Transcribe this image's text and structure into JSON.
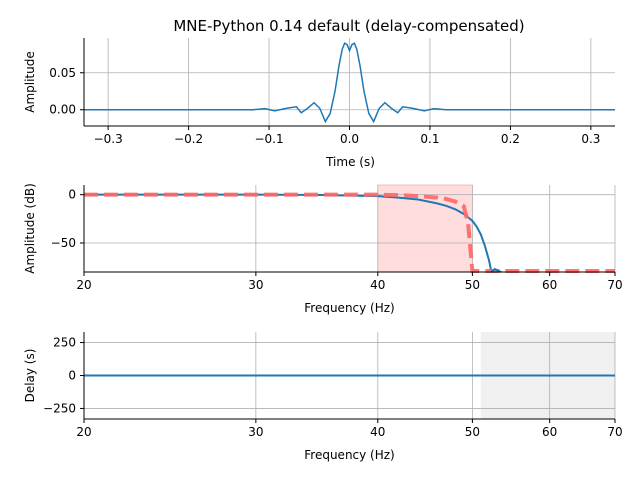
{
  "title": "MNE-Python 0.14 default (delay-compensated)",
  "colors": {
    "line": "#1f77b4",
    "ideal": "#ff6666",
    "transition_fill": "#ffdddd",
    "stopband_fill": "#f0f0f0",
    "grid": "#b0b0b0"
  },
  "chart_data": [
    {
      "type": "line",
      "panel": "impulse",
      "title": "MNE-Python 0.14 default (delay-compensated)",
      "xlabel": "Time (s)",
      "ylabel": "Amplitude",
      "xlim": [
        -0.33,
        0.33
      ],
      "ylim": [
        -0.022,
        0.097
      ],
      "xticks": [
        -0.3,
        -0.2,
        -0.1,
        0.0,
        0.1,
        0.2,
        0.3
      ],
      "xtick_labels": [
        "−0.3",
        "−0.2",
        "−0.1",
        "0.0",
        "0.1",
        "0.2",
        "0.3"
      ],
      "yticks": [
        0.0,
        0.05
      ],
      "ytick_labels": [
        "0.00",
        "0.05"
      ],
      "grid": true,
      "series": [
        {
          "x": [
            -0.33,
            -0.12,
            -0.105,
            -0.093,
            -0.078,
            -0.066,
            -0.06,
            -0.052,
            -0.044,
            -0.037,
            -0.03,
            -0.024,
            -0.018,
            -0.013,
            -0.009,
            -0.006,
            -0.003,
            0.0,
            0.003,
            0.006,
            0.009,
            0.013,
            0.018,
            0.024,
            0.03,
            0.037,
            0.044,
            0.052,
            0.06,
            0.066,
            0.078,
            0.093,
            0.105,
            0.12,
            0.33
          ],
          "y": [
            0.0,
            0.0,
            0.0015,
            -0.0015,
            0.002,
            0.004,
            -0.004,
            0.002,
            0.0095,
            0.002,
            -0.016,
            -0.005,
            0.025,
            0.06,
            0.082,
            0.09,
            0.088,
            0.08,
            0.088,
            0.09,
            0.082,
            0.06,
            0.025,
            -0.005,
            -0.016,
            0.002,
            0.0095,
            0.002,
            -0.004,
            0.004,
            0.002,
            -0.0015,
            0.0015,
            0.0,
            0.0
          ]
        }
      ]
    },
    {
      "type": "line",
      "panel": "magnitude",
      "xlabel": "Frequency (Hz)",
      "ylabel": "Amplitude (dB)",
      "xscale": "log",
      "xlim": [
        20,
        70
      ],
      "ylim": [
        -80,
        10
      ],
      "xticks": [
        20,
        30,
        40,
        50,
        60,
        70
      ],
      "xtick_labels": [
        "20",
        "30",
        "40",
        "50",
        "60",
        "70"
      ],
      "yticks": [
        0,
        -50
      ],
      "ytick_labels": [
        "0",
        "−50"
      ],
      "grid": true,
      "shaded_band_hz": [
        40,
        50
      ],
      "series": [
        {
          "name": "",
          "style": "solid",
          "x": [
            20,
            30,
            35,
            40,
            42,
            44,
            46,
            47,
            48,
            49,
            50,
            50.5,
            51,
            51.5,
            52,
            52.3
          ],
          "y": [
            0,
            0,
            -0.3,
            -1.5,
            -3,
            -5,
            -9,
            -11.5,
            -15,
            -20,
            -27,
            -33,
            -41,
            -53,
            -68,
            -80
          ]
        },
        {
          "name": "",
          "style": "dashed",
          "x": [
            20,
            40,
            42,
            44,
            46,
            47,
            48,
            49,
            49.5,
            50,
            51,
            70
          ],
          "y": [
            0,
            0,
            -0.5,
            -1.5,
            -3,
            -4.5,
            -7,
            -12,
            -30,
            -79,
            -79,
            -79
          ]
        }
      ]
    },
    {
      "type": "line",
      "panel": "delay",
      "xlabel": "Frequency (Hz)",
      "ylabel": "Delay (s)",
      "xscale": "log",
      "xlim": [
        20,
        70
      ],
      "ylim": [
        -330,
        330
      ],
      "xticks": [
        20,
        30,
        40,
        50,
        60,
        70
      ],
      "xtick_labels": [
        "20",
        "30",
        "40",
        "50",
        "60",
        "70"
      ],
      "yticks": [
        250,
        0,
        -250
      ],
      "ytick_labels": [
        "250",
        "0",
        "−250"
      ],
      "grid": true,
      "shaded_band_hz": [
        51,
        70
      ],
      "series": [
        {
          "x": [
            20,
            70
          ],
          "y": [
            0,
            0
          ]
        }
      ]
    }
  ]
}
